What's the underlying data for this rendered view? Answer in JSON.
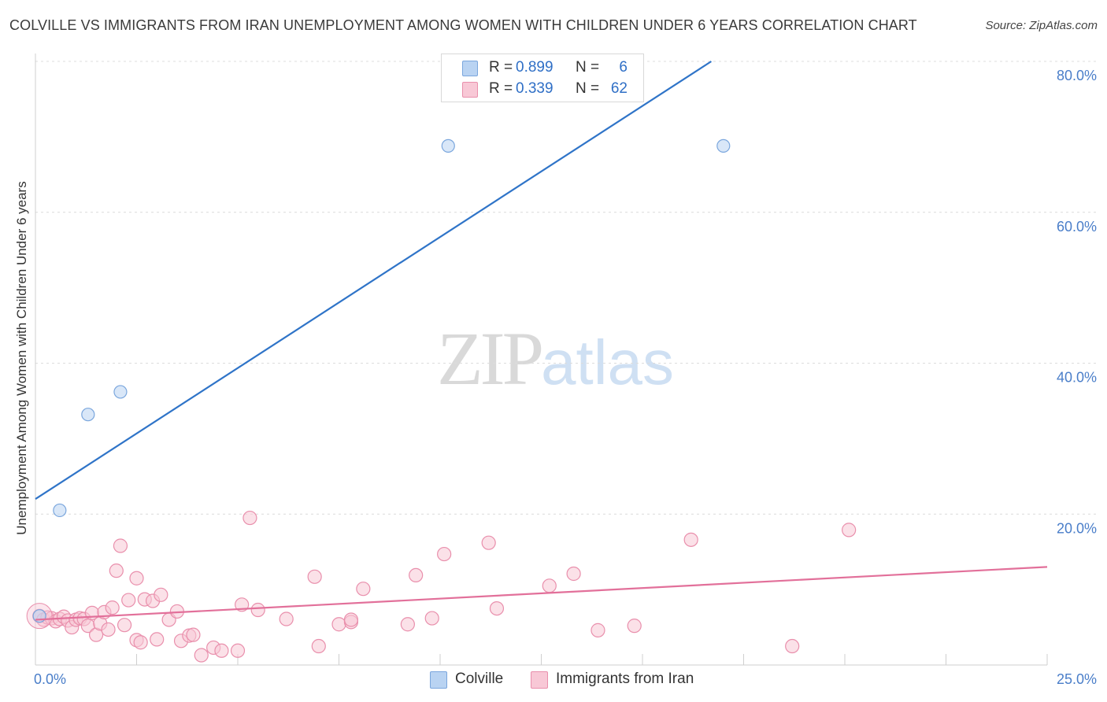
{
  "header": {
    "title": "COLVILLE VS IMMIGRANTS FROM IRAN UNEMPLOYMENT AMONG WOMEN WITH CHILDREN UNDER 6 YEARS CORRELATION CHART",
    "source": "Source: ZipAtlas.com"
  },
  "watermark": {
    "zip": "ZIP",
    "atlas": "atlas"
  },
  "legend": {
    "rows": [
      {
        "r_label": "R =",
        "r_value": "0.899",
        "n_label": "N =",
        "n_value": "6",
        "color": "#b9d3f2",
        "border": "#7aa6dd"
      },
      {
        "r_label": "R =",
        "r_value": "0.339",
        "n_label": "N =",
        "n_value": "62",
        "color": "#f8c8d6",
        "border": "#e98fac"
      }
    ]
  },
  "bottom_legend": {
    "items": [
      {
        "label": "Colville",
        "color": "#b9d3f2",
        "border": "#7aa6dd"
      },
      {
        "label": "Immigrants from Iran",
        "color": "#f8c8d6",
        "border": "#e98fac"
      }
    ]
  },
  "chart_data": {
    "type": "scatter",
    "title": "COLVILLE VS IMMIGRANTS FROM IRAN UNEMPLOYMENT AMONG WOMEN WITH CHILDREN UNDER 6 YEARS CORRELATION CHART",
    "xlabel": "",
    "ylabel": "Unemployment Among Women with Children Under 6 years",
    "xlim": [
      0,
      25
    ],
    "ylim": [
      0,
      80
    ],
    "x_tick_labels": [
      "0.0%",
      "25.0%"
    ],
    "y_tick_labels": [
      "20.0%",
      "40.0%",
      "60.0%",
      "80.0%"
    ],
    "y_tick_values": [
      20,
      40,
      60,
      80
    ],
    "grid": true,
    "series": [
      {
        "name": "Colville",
        "color": "#b9d3f2",
        "stroke": "#7aa6dd",
        "line_color": "#2f74c8",
        "trend": {
          "x": [
            0,
            16.7
          ],
          "y": [
            22.0,
            80.0
          ]
        },
        "points": [
          {
            "x": 0.1,
            "y": 6.5
          },
          {
            "x": 0.6,
            "y": 20.5
          },
          {
            "x": 1.3,
            "y": 33.2
          },
          {
            "x": 2.1,
            "y": 36.2
          },
          {
            "x": 10.2,
            "y": 68.8
          },
          {
            "x": 17.0,
            "y": 68.8
          }
        ]
      },
      {
        "name": "Immigrants from Iran",
        "color": "#f8c8d6",
        "stroke": "#e98fac",
        "line_color": "#e2709a",
        "trend": {
          "x": [
            0,
            25
          ],
          "y": [
            6.0,
            13.0
          ]
        },
        "points": [
          {
            "x": 0.1,
            "y": 6.5
          },
          {
            "x": 0.2,
            "y": 6.0
          },
          {
            "x": 0.3,
            "y": 6.3
          },
          {
            "x": 0.4,
            "y": 6.2
          },
          {
            "x": 0.5,
            "y": 5.8
          },
          {
            "x": 0.6,
            "y": 6.1
          },
          {
            "x": 0.7,
            "y": 6.4
          },
          {
            "x": 0.8,
            "y": 5.9
          },
          {
            "x": 0.9,
            "y": 5.0
          },
          {
            "x": 1.0,
            "y": 6.0
          },
          {
            "x": 1.1,
            "y": 6.2
          },
          {
            "x": 1.2,
            "y": 6.1
          },
          {
            "x": 1.3,
            "y": 5.2
          },
          {
            "x": 1.4,
            "y": 6.9
          },
          {
            "x": 1.5,
            "y": 4.0
          },
          {
            "x": 1.6,
            "y": 5.5
          },
          {
            "x": 1.7,
            "y": 7.0
          },
          {
            "x": 1.8,
            "y": 4.7
          },
          {
            "x": 1.9,
            "y": 7.6
          },
          {
            "x": 2.0,
            "y": 12.5
          },
          {
            "x": 2.1,
            "y": 15.8
          },
          {
            "x": 2.2,
            "y": 5.3
          },
          {
            "x": 2.3,
            "y": 8.6
          },
          {
            "x": 2.5,
            "y": 11.5
          },
          {
            "x": 2.5,
            "y": 3.3
          },
          {
            "x": 2.6,
            "y": 3.0
          },
          {
            "x": 2.7,
            "y": 8.7
          },
          {
            "x": 2.9,
            "y": 8.5
          },
          {
            "x": 3.0,
            "y": 3.4
          },
          {
            "x": 3.1,
            "y": 9.3
          },
          {
            "x": 3.3,
            "y": 6.0
          },
          {
            "x": 3.5,
            "y": 7.1
          },
          {
            "x": 3.6,
            "y": 3.2
          },
          {
            "x": 3.8,
            "y": 3.9
          },
          {
            "x": 3.9,
            "y": 4.0
          },
          {
            "x": 4.1,
            "y": 1.3
          },
          {
            "x": 4.4,
            "y": 2.3
          },
          {
            "x": 4.6,
            "y": 1.9
          },
          {
            "x": 5.0,
            "y": 1.9
          },
          {
            "x": 5.1,
            "y": 8.0
          },
          {
            "x": 5.3,
            "y": 19.5
          },
          {
            "x": 5.5,
            "y": 7.3
          },
          {
            "x": 6.2,
            "y": 6.1
          },
          {
            "x": 7.0,
            "y": 2.5
          },
          {
            "x": 6.9,
            "y": 11.7
          },
          {
            "x": 7.5,
            "y": 5.4
          },
          {
            "x": 7.8,
            "y": 5.7
          },
          {
            "x": 7.8,
            "y": 6.0
          },
          {
            "x": 8.1,
            "y": 10.1
          },
          {
            "x": 9.2,
            "y": 5.4
          },
          {
            "x": 9.4,
            "y": 11.9
          },
          {
            "x": 9.8,
            "y": 6.2
          },
          {
            "x": 10.1,
            "y": 14.7
          },
          {
            "x": 11.2,
            "y": 16.2
          },
          {
            "x": 11.4,
            "y": 7.5
          },
          {
            "x": 12.7,
            "y": 10.5
          },
          {
            "x": 13.3,
            "y": 12.1
          },
          {
            "x": 13.9,
            "y": 4.6
          },
          {
            "x": 14.8,
            "y": 5.2
          },
          {
            "x": 16.2,
            "y": 16.6
          },
          {
            "x": 18.7,
            "y": 2.5
          },
          {
            "x": 20.1,
            "y": 17.9
          }
        ]
      }
    ]
  }
}
